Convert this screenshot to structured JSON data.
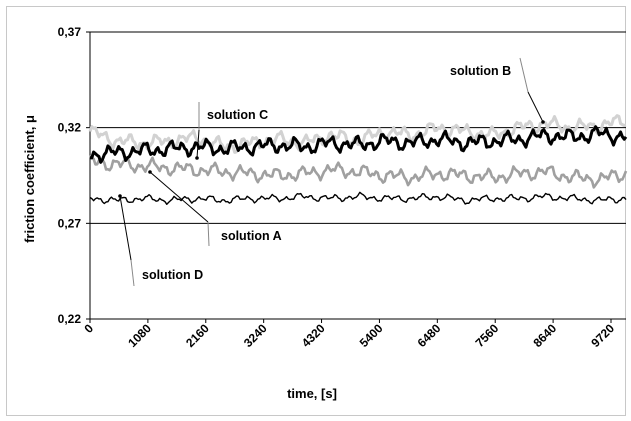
{
  "chart_data": {
    "type": "line",
    "title": "",
    "xlabel": "time, [s]",
    "ylabel": "friction coefficient, μ",
    "xlim": [
      0,
      10000
    ],
    "ylim": [
      0.22,
      0.37
    ],
    "x_ticks": [
      "0",
      "1080",
      "2160",
      "3240",
      "4320",
      "5400",
      "6480",
      "7560",
      "8640",
      "9720"
    ],
    "x_tick_values": [
      0,
      1080,
      2160,
      3240,
      4320,
      5400,
      6480,
      7560,
      8640,
      9720
    ],
    "y_ticks": [
      "0,22",
      "0,27",
      "0,32",
      "0,37"
    ],
    "y_tick_values": [
      0.22,
      0.27,
      0.32,
      0.37
    ],
    "gridlines": "horizontal",
    "legend": "none (series identified by callout annotations)",
    "series": [
      {
        "name": "solution A",
        "color": "#a0a0a0",
        "x": [
          0,
          500,
          1000,
          1500,
          2000,
          2500,
          3000,
          3500,
          4000,
          4500,
          5000,
          5500,
          6000,
          6500,
          7000,
          7500,
          8000,
          8500,
          9000,
          9500,
          10000
        ],
        "values": [
          0.302,
          0.301,
          0.3,
          0.299,
          0.298,
          0.297,
          0.296,
          0.295,
          0.296,
          0.298,
          0.297,
          0.295,
          0.294,
          0.296,
          0.295,
          0.294,
          0.296,
          0.297,
          0.294,
          0.293,
          0.296
        ]
      },
      {
        "name": "solution B",
        "color": "#d2d2d2",
        "x": [
          0,
          500,
          1000,
          1500,
          2000,
          2500,
          3000,
          3500,
          4000,
          4500,
          5000,
          5500,
          6000,
          6500,
          7000,
          7500,
          8000,
          8500,
          9000,
          9500,
          10000
        ],
        "values": [
          0.318,
          0.313,
          0.312,
          0.313,
          0.315,
          0.31,
          0.312,
          0.314,
          0.312,
          0.316,
          0.313,
          0.318,
          0.316,
          0.32,
          0.318,
          0.316,
          0.32,
          0.322,
          0.32,
          0.321,
          0.324
        ]
      },
      {
        "name": "solution C",
        "color": "#000000",
        "x": [
          0,
          500,
          1000,
          1500,
          2000,
          2500,
          3000,
          3500,
          4000,
          4500,
          5000,
          5500,
          6000,
          6500,
          7000,
          7500,
          8000,
          8500,
          9000,
          9500,
          10000
        ],
        "values": [
          0.306,
          0.307,
          0.308,
          0.309,
          0.31,
          0.309,
          0.31,
          0.311,
          0.31,
          0.312,
          0.311,
          0.313,
          0.312,
          0.314,
          0.312,
          0.313,
          0.314,
          0.316,
          0.315,
          0.317,
          0.315
        ]
      },
      {
        "name": "solution D",
        "color": "#000000",
        "x": [
          0,
          500,
          1000,
          1500,
          2000,
          2500,
          3000,
          3500,
          4000,
          4500,
          5000,
          5500,
          6000,
          6500,
          7000,
          7500,
          8000,
          8500,
          9000,
          9500,
          10000
        ],
        "values": [
          0.283,
          0.282,
          0.283,
          0.282,
          0.283,
          0.282,
          0.283,
          0.283,
          0.284,
          0.283,
          0.284,
          0.283,
          0.283,
          0.284,
          0.282,
          0.283,
          0.283,
          0.284,
          0.283,
          0.282,
          0.283
        ]
      }
    ],
    "annotations": [
      {
        "text": "solution A"
      },
      {
        "text": "solution B"
      },
      {
        "text": "solution C"
      },
      {
        "text": "solution D"
      }
    ]
  }
}
